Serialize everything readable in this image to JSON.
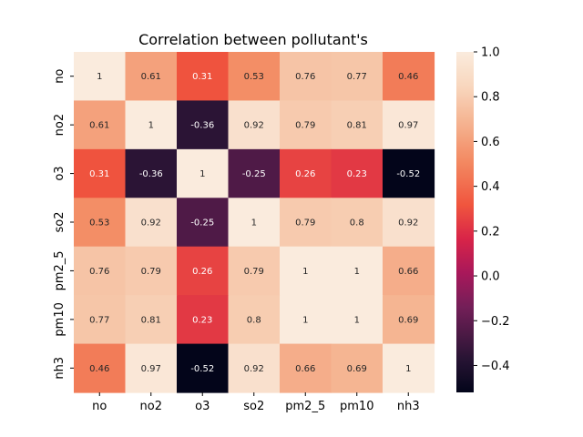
{
  "chart_data": {
    "type": "heatmap",
    "title": "Correlation between pollutant's",
    "xlabel": "",
    "ylabel": "",
    "x_categories": [
      "no",
      "no2",
      "o3",
      "so2",
      "pm2_5",
      "pm10",
      "nh3"
    ],
    "y_categories": [
      "no",
      "no2",
      "o3",
      "so2",
      "pm2_5",
      "pm10",
      "nh3"
    ],
    "values": [
      [
        1,
        0.61,
        0.31,
        0.53,
        0.76,
        0.77,
        0.46
      ],
      [
        0.61,
        1,
        -0.36,
        0.92,
        0.79,
        0.81,
        0.97
      ],
      [
        0.31,
        -0.36,
        1,
        -0.25,
        0.26,
        0.23,
        -0.52
      ],
      [
        0.53,
        0.92,
        -0.25,
        1,
        0.79,
        0.8,
        0.92
      ],
      [
        0.76,
        0.79,
        0.26,
        0.79,
        1,
        1,
        0.66
      ],
      [
        0.77,
        0.81,
        0.23,
        0.8,
        1,
        1,
        0.69
      ],
      [
        0.46,
        0.97,
        -0.52,
        0.92,
        0.66,
        0.69,
        1
      ]
    ],
    "colorbar": {
      "colormap": "rocket",
      "range": [
        -0.52,
        1.0
      ],
      "ticks": [
        1.0,
        0.8,
        0.6,
        0.4,
        0.2,
        0.0,
        -0.2,
        -0.4
      ],
      "tick_labels": [
        "1.0",
        "0.8",
        "0.6",
        "0.4",
        "0.2",
        "0.0",
        "−0.2",
        "−0.4"
      ]
    },
    "annotations": true,
    "grid": false
  }
}
